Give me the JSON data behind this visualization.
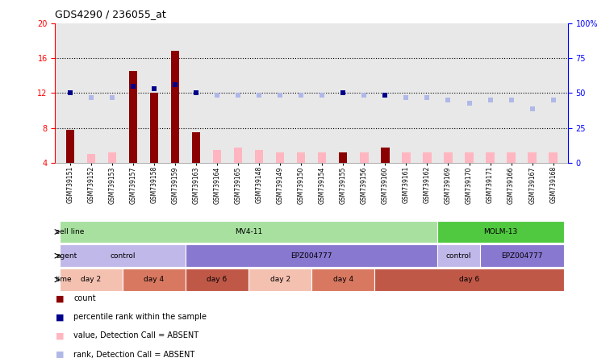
{
  "title": "GDS4290 / 236055_at",
  "samples": [
    "GSM739151",
    "GSM739152",
    "GSM739153",
    "GSM739157",
    "GSM739158",
    "GSM739159",
    "GSM739163",
    "GSM739164",
    "GSM739165",
    "GSM739148",
    "GSM739149",
    "GSM739150",
    "GSM739154",
    "GSM739155",
    "GSM739156",
    "GSM739160",
    "GSM739161",
    "GSM739162",
    "GSM739169",
    "GSM739170",
    "GSM739171",
    "GSM739166",
    "GSM739167",
    "GSM739168"
  ],
  "count_present": [
    7.8,
    null,
    null,
    14.5,
    12.0,
    16.8,
    7.5,
    null,
    null,
    null,
    null,
    null,
    null,
    5.2,
    null,
    5.8,
    null,
    null,
    null,
    null,
    null,
    null,
    null,
    null
  ],
  "count_absent": [
    null,
    5.0,
    5.2,
    null,
    null,
    null,
    null,
    5.5,
    5.8,
    5.5,
    5.2,
    5.2,
    5.2,
    null,
    5.2,
    null,
    5.2,
    5.2,
    5.2,
    5.2,
    5.2,
    5.2,
    5.2,
    5.2
  ],
  "rank_present": [
    12.0,
    null,
    null,
    12.8,
    12.5,
    13.0,
    12.0,
    null,
    null,
    null,
    null,
    null,
    null,
    12.0,
    null,
    11.8,
    null,
    null,
    null,
    null,
    null,
    null,
    null,
    null
  ],
  "rank_absent": [
    null,
    11.5,
    11.5,
    null,
    null,
    null,
    null,
    11.8,
    11.8,
    11.8,
    11.8,
    11.8,
    11.8,
    null,
    11.8,
    null,
    11.5,
    11.5,
    11.2,
    10.8,
    11.2,
    11.2,
    10.2,
    11.2
  ],
  "ylim_left": [
    4,
    20
  ],
  "ylim_right": [
    0,
    100
  ],
  "yticks_left": [
    4,
    8,
    12,
    16,
    20
  ],
  "yticks_right": [
    0,
    25,
    50,
    75,
    100
  ],
  "hlines": [
    8,
    12,
    16
  ],
  "cell_line_groups": [
    {
      "label": "MV4-11",
      "start": 0,
      "end": 18,
      "color": "#a8e0a0"
    },
    {
      "label": "MOLM-13",
      "start": 18,
      "end": 24,
      "color": "#50c840"
    }
  ],
  "agent_groups": [
    {
      "label": "control",
      "start": 0,
      "end": 6,
      "color": "#c0b8e8"
    },
    {
      "label": "EPZ004777",
      "start": 6,
      "end": 18,
      "color": "#8878d0"
    },
    {
      "label": "control",
      "start": 18,
      "end": 20,
      "color": "#c0b8e8"
    },
    {
      "label": "EPZ004777",
      "start": 20,
      "end": 24,
      "color": "#8878d0"
    }
  ],
  "time_groups": [
    {
      "label": "day 2",
      "start": 0,
      "end": 3,
      "color": "#f4c0b0"
    },
    {
      "label": "day 4",
      "start": 3,
      "end": 6,
      "color": "#d87860"
    },
    {
      "label": "day 6",
      "start": 6,
      "end": 9,
      "color": "#c05848"
    },
    {
      "label": "day 2",
      "start": 9,
      "end": 12,
      "color": "#f4c0b0"
    },
    {
      "label": "day 4",
      "start": 12,
      "end": 15,
      "color": "#d87860"
    },
    {
      "label": "day 6",
      "start": 15,
      "end": 24,
      "color": "#c05848"
    }
  ],
  "count_present_color": "#8B0000",
  "count_absent_color": "#FFB6C1",
  "rank_present_color": "#00008B",
  "rank_absent_color": "#b0b8e8",
  "plot_bg_color": "#e8e8e8",
  "tick_bg_color": "#d0d0d0",
  "legend_labels": [
    "count",
    "percentile rank within the sample",
    "value, Detection Call = ABSENT",
    "rank, Detection Call = ABSENT"
  ],
  "legend_colors": [
    "#8B0000",
    "#00008B",
    "#FFB6C1",
    "#b0b8e8"
  ]
}
